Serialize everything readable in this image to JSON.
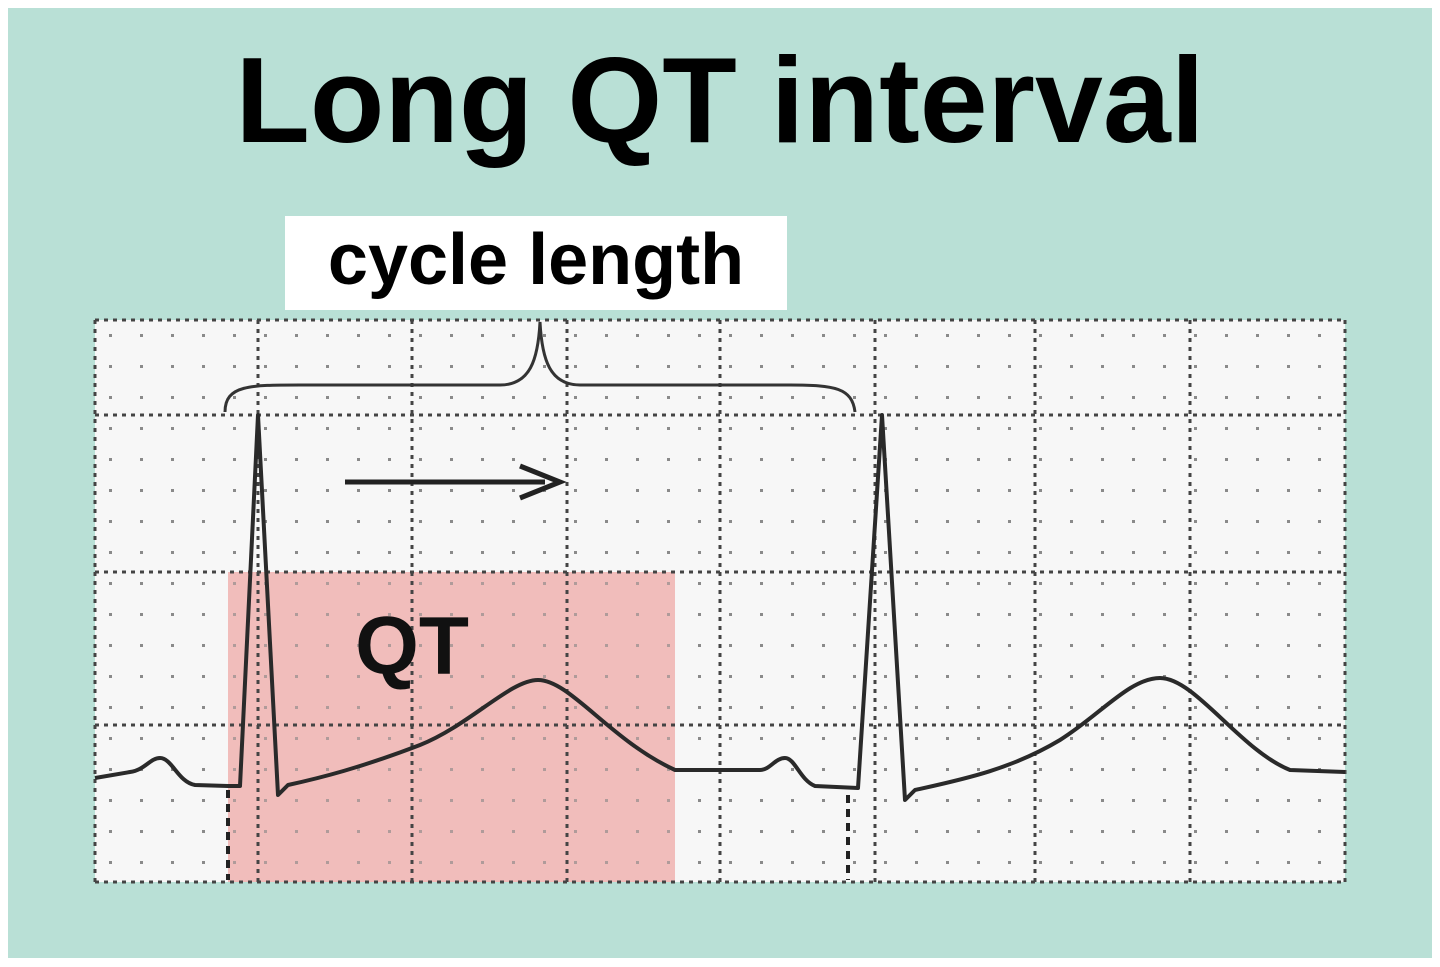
{
  "title": "Long QT interval",
  "labels": {
    "cycle_length": "cycle length",
    "qt": "QT"
  }
}
